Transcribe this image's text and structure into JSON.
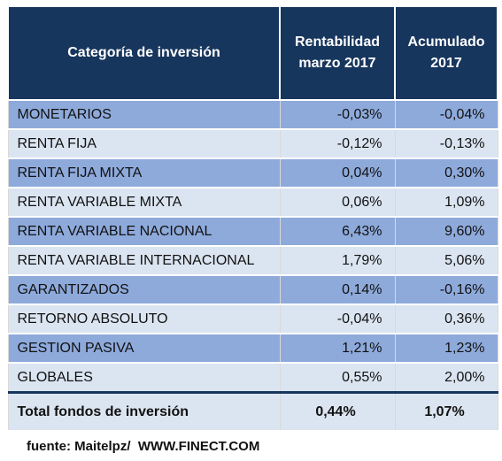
{
  "table": {
    "headers": [
      "Categoría de inversión",
      "Rentabilidad",
      "marzo 2017",
      "Acumulado",
      "2017"
    ],
    "rows": [
      [
        "MONETARIOS",
        "-0,03%",
        "-0,04%"
      ],
      [
        "RENTA FIJA",
        "-0,12%",
        "-0,13%"
      ],
      [
        "RENTA FIJA MIXTA",
        "0,04%",
        "0,30%"
      ],
      [
        "RENTA VARIABLE MIXTA",
        "0,06%",
        "1,09%"
      ],
      [
        "RENTA VARIABLE NACIONAL",
        "6,43%",
        "9,60%"
      ],
      [
        "RENTA VARIABLE INTERNACIONAL",
        "1,79%",
        "5,06%"
      ],
      [
        "GARANTIZADOS",
        "0,14%",
        "-0,16%"
      ],
      [
        "RETORNO ABSOLUTO",
        "-0,04%",
        "0,36%"
      ],
      [
        "GESTION PASIVA",
        "1,21%",
        "1,23%"
      ],
      [
        "GLOBALES",
        "0,55%",
        "2,00%"
      ]
    ],
    "total": [
      "Total fondos de inversión",
      "0,44%",
      "1,07%"
    ]
  },
  "footer": "fuente: Maitelpz/  WWW.FINECT.COM",
  "colors": {
    "header_bg": "#17365d",
    "row_dark": "#8eaadb",
    "row_light": "#dbe5f1"
  }
}
